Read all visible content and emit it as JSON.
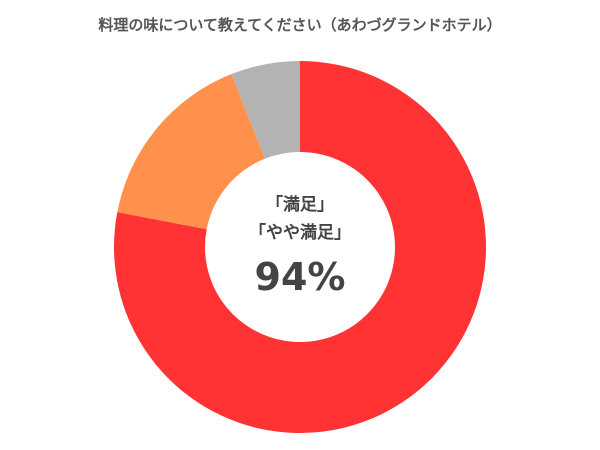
{
  "chart_data": {
    "type": "pie",
    "title": "料理の味について教えてください（あわづグランドホテル）",
    "slices": [
      {
        "value": 78,
        "color": "#ff3333"
      },
      {
        "value": 16,
        "color": "#ff914d"
      },
      {
        "value": 6,
        "color": "#b3b3b3"
      }
    ],
    "center_label": {
      "line1": "「満足」",
      "line2": "「やや満足」",
      "value": "94%"
    },
    "donut": true
  }
}
